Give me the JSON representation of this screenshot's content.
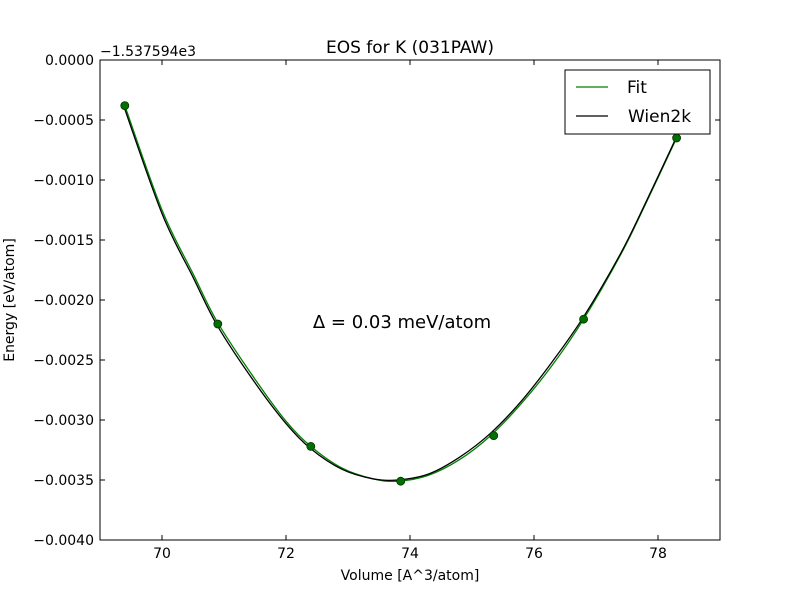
{
  "chart_data": {
    "type": "line",
    "title": "EOS for K (031PAW)",
    "xlabel": "Volume [A^3/atom]",
    "ylabel": "Energy [eV/atom]",
    "offset_label": "−1.537594e3",
    "annotation": "Δ = 0.03 meV/atom",
    "xlim": [
      69,
      79
    ],
    "ylim": [
      -0.004,
      0.0
    ],
    "x_ticks": [
      70,
      72,
      74,
      76,
      78
    ],
    "x_tick_labels": [
      "70",
      "72",
      "74",
      "76",
      "78"
    ],
    "y_ticks": [
      0.0,
      -0.0005,
      -0.001,
      -0.0015,
      -0.002,
      -0.0025,
      -0.003,
      -0.0035,
      -0.004
    ],
    "y_tick_labels": [
      "0.0000",
      "−0.0005",
      "−0.0010",
      "−0.0015",
      "−0.0020",
      "−0.0025",
      "−0.0030",
      "−0.0035",
      "−0.0040"
    ],
    "grid": false,
    "legend_position": "top-right",
    "series": [
      {
        "name": "Fit",
        "color": "#008000",
        "style": "line",
        "x": [
          69.4,
          70.0,
          70.5,
          70.9,
          71.5,
          72.0,
          72.4,
          72.9,
          73.4,
          73.8,
          74.3,
          74.8,
          75.3,
          75.8,
          76.3,
          76.8,
          77.4,
          77.8,
          78.3
        ],
        "y": [
          -0.00038,
          -0.00125,
          -0.00178,
          -0.00219,
          -0.00266,
          -0.00301,
          -0.00322,
          -0.0034,
          -0.00349,
          -0.00351,
          -0.00346,
          -0.00333,
          -0.00313,
          -0.00286,
          -0.00254,
          -0.00216,
          -0.00162,
          -0.0012,
          -0.00065
        ]
      },
      {
        "name": "Wien2k",
        "color": "#000000",
        "style": "line",
        "x": [
          69.4,
          70.0,
          70.5,
          70.9,
          71.5,
          72.0,
          72.4,
          72.9,
          73.4,
          73.8,
          74.3,
          74.8,
          75.3,
          75.8,
          76.3,
          76.8,
          77.4,
          77.8,
          78.3
        ],
        "y": [
          -0.00041,
          -0.00128,
          -0.00181,
          -0.00222,
          -0.00269,
          -0.00303,
          -0.00324,
          -0.00341,
          -0.00349,
          -0.0035,
          -0.00345,
          -0.00331,
          -0.00311,
          -0.00284,
          -0.00251,
          -0.00214,
          -0.00161,
          -0.00119,
          -0.00064
        ]
      },
      {
        "color": "#007000",
        "style": "markers",
        "x": [
          69.4,
          70.9,
          72.4,
          73.85,
          75.35,
          76.8,
          78.3
        ],
        "y": [
          -0.00038,
          -0.0022,
          -0.00322,
          -0.00351,
          -0.00313,
          -0.00216,
          -0.00065
        ]
      }
    ]
  }
}
